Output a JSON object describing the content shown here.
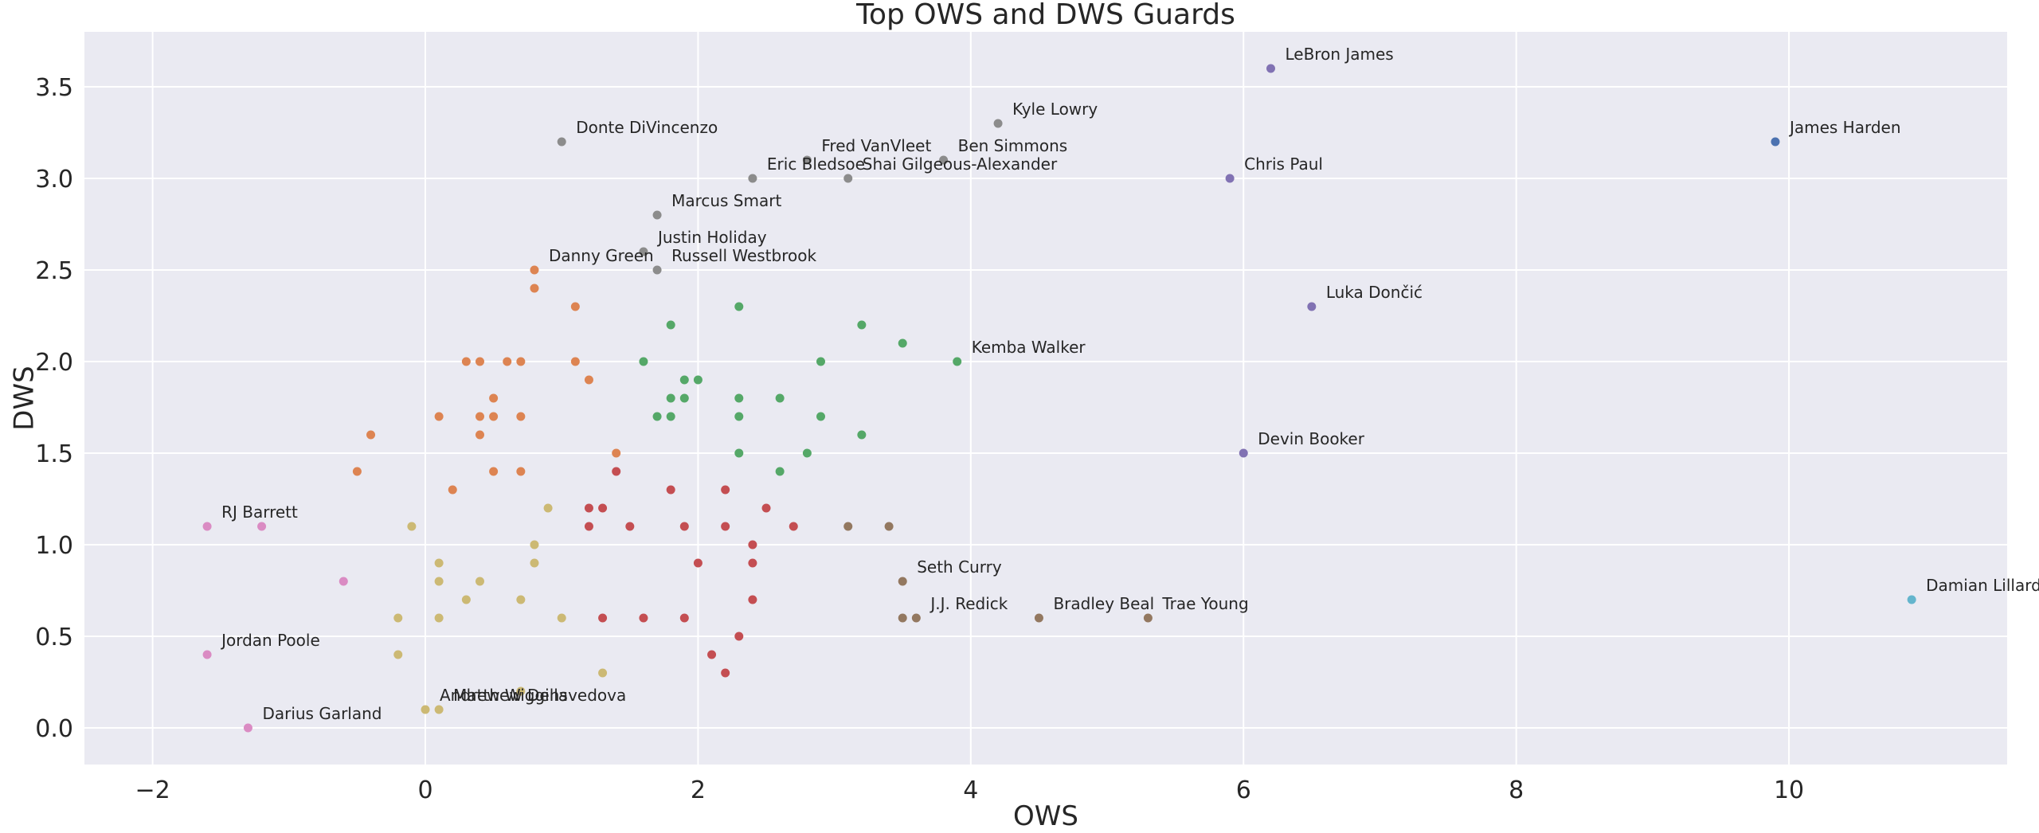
{
  "chart_data": {
    "type": "scatter",
    "title": "Top OWS and DWS Guards",
    "xlabel": "OWS",
    "ylabel": "DWS",
    "xlim": [
      -2.5,
      11.6
    ],
    "ylim": [
      -0.2,
      3.8
    ],
    "xticks": [
      -2,
      0,
      2,
      4,
      6,
      8,
      10
    ],
    "yticks": [
      0.0,
      0.5,
      1.0,
      1.5,
      2.0,
      2.5,
      3.0,
      3.5
    ],
    "xtick_labels": [
      "−2",
      "0",
      "2",
      "4",
      "6",
      "8",
      "10"
    ],
    "ytick_labels": [
      "0.0",
      "0.5",
      "1.0",
      "1.5",
      "2.0",
      "2.5",
      "3.0",
      "3.5"
    ],
    "grid": true,
    "background": "#eaeaf2",
    "series": [
      {
        "color": "#4c72b0",
        "points": [
          {
            "x": 9.9,
            "y": 3.2,
            "label": "James Harden"
          }
        ]
      },
      {
        "color": "#dd8452",
        "points": [
          {
            "x": 0.8,
            "y": 2.5,
            "label": "Danny Green"
          },
          {
            "x": 0.8,
            "y": 2.4
          },
          {
            "x": 1.1,
            "y": 2.3
          },
          {
            "x": 0.3,
            "y": 2.0
          },
          {
            "x": 0.4,
            "y": 2.0
          },
          {
            "x": 0.6,
            "y": 2.0
          },
          {
            "x": 0.7,
            "y": 2.0
          },
          {
            "x": 1.1,
            "y": 2.0
          },
          {
            "x": 1.2,
            "y": 1.9
          },
          {
            "x": 0.5,
            "y": 1.8
          },
          {
            "x": 0.1,
            "y": 1.7
          },
          {
            "x": 0.4,
            "y": 1.7
          },
          {
            "x": 0.5,
            "y": 1.7
          },
          {
            "x": 0.7,
            "y": 1.7
          },
          {
            "x": -0.4,
            "y": 1.6
          },
          {
            "x": 0.4,
            "y": 1.6
          },
          {
            "x": 1.4,
            "y": 1.5
          },
          {
            "x": -0.5,
            "y": 1.4
          },
          {
            "x": 0.5,
            "y": 1.4
          },
          {
            "x": 0.7,
            "y": 1.4
          },
          {
            "x": 0.2,
            "y": 1.3
          }
        ]
      },
      {
        "color": "#55a868",
        "points": [
          {
            "x": 3.9,
            "y": 2.0,
            "label": "Kemba Walker"
          },
          {
            "x": 2.3,
            "y": 2.3
          },
          {
            "x": 1.8,
            "y": 2.2
          },
          {
            "x": 3.2,
            "y": 2.2
          },
          {
            "x": 3.5,
            "y": 2.1
          },
          {
            "x": 1.6,
            "y": 2.0
          },
          {
            "x": 2.9,
            "y": 2.0
          },
          {
            "x": 1.9,
            "y": 1.9
          },
          {
            "x": 2.0,
            "y": 1.9
          },
          {
            "x": 1.8,
            "y": 1.8
          },
          {
            "x": 1.9,
            "y": 1.8
          },
          {
            "x": 2.3,
            "y": 1.8
          },
          {
            "x": 2.6,
            "y": 1.8
          },
          {
            "x": 1.7,
            "y": 1.7
          },
          {
            "x": 1.8,
            "y": 1.7
          },
          {
            "x": 2.3,
            "y": 1.7
          },
          {
            "x": 2.9,
            "y": 1.7
          },
          {
            "x": 3.2,
            "y": 1.6
          },
          {
            "x": 2.3,
            "y": 1.5
          },
          {
            "x": 2.8,
            "y": 1.5
          },
          {
            "x": 2.6,
            "y": 1.4
          }
        ]
      },
      {
        "color": "#c44e52",
        "points": [
          {
            "x": 1.4,
            "y": 1.4
          },
          {
            "x": 1.8,
            "y": 1.3
          },
          {
            "x": 2.2,
            "y": 1.3
          },
          {
            "x": 1.2,
            "y": 1.2
          },
          {
            "x": 1.3,
            "y": 1.2
          },
          {
            "x": 2.5,
            "y": 1.2
          },
          {
            "x": 1.2,
            "y": 1.1
          },
          {
            "x": 1.5,
            "y": 1.1
          },
          {
            "x": 1.9,
            "y": 1.1
          },
          {
            "x": 2.2,
            "y": 1.1
          },
          {
            "x": 2.7,
            "y": 1.1
          },
          {
            "x": 2.4,
            "y": 1.0
          },
          {
            "x": 2.0,
            "y": 0.9
          },
          {
            "x": 2.4,
            "y": 0.9
          },
          {
            "x": 2.4,
            "y": 0.7
          },
          {
            "x": 1.3,
            "y": 0.6
          },
          {
            "x": 1.6,
            "y": 0.6
          },
          {
            "x": 1.9,
            "y": 0.6
          },
          {
            "x": 2.3,
            "y": 0.5
          },
          {
            "x": 2.1,
            "y": 0.4
          },
          {
            "x": 2.2,
            "y": 0.3
          }
        ]
      },
      {
        "color": "#8172b3",
        "points": [
          {
            "x": 6.2,
            "y": 3.6,
            "label": "LeBron James"
          },
          {
            "x": 5.9,
            "y": 3.0,
            "label": "Chris Paul"
          },
          {
            "x": 6.5,
            "y": 2.3,
            "label": "Luka Dončić"
          },
          {
            "x": 6.0,
            "y": 1.5,
            "label": "Devin Booker"
          }
        ]
      },
      {
        "color": "#937860",
        "points": [
          {
            "x": 3.5,
            "y": 0.8,
            "label": "Seth Curry"
          },
          {
            "x": 3.6,
            "y": 0.6,
            "label": "J.J. Redick"
          },
          {
            "x": 4.5,
            "y": 0.6,
            "label": "Bradley Beal"
          },
          {
            "x": 5.3,
            "y": 0.6,
            "label": "Trae Young"
          },
          {
            "x": 3.1,
            "y": 1.1
          },
          {
            "x": 3.4,
            "y": 1.1
          },
          {
            "x": 3.5,
            "y": 0.6
          }
        ]
      },
      {
        "color": "#da8bc3",
        "points": [
          {
            "x": -1.6,
            "y": 1.1,
            "label": "RJ Barrett"
          },
          {
            "x": -1.6,
            "y": 0.4,
            "label": "Jordan Poole"
          },
          {
            "x": -1.3,
            "y": 0.0,
            "label": "Darius Garland"
          },
          {
            "x": -1.2,
            "y": 1.1
          },
          {
            "x": -0.6,
            "y": 0.8
          }
        ]
      },
      {
        "color": "#8c8c8c",
        "points": [
          {
            "x": 4.2,
            "y": 3.3,
            "label": "Kyle Lowry"
          },
          {
            "x": 1.0,
            "y": 3.2,
            "label": "Donte DiVincenzo"
          },
          {
            "x": 2.8,
            "y": 3.1,
            "label": "Fred VanVleet"
          },
          {
            "x": 3.8,
            "y": 3.1,
            "label": "Ben Simmons"
          },
          {
            "x": 2.4,
            "y": 3.0,
            "label": "Eric Bledsoe"
          },
          {
            "x": 3.1,
            "y": 3.0,
            "label": "Shai Gilgeous-Alexander"
          },
          {
            "x": 1.7,
            "y": 2.8,
            "label": "Marcus Smart"
          },
          {
            "x": 1.6,
            "y": 2.6,
            "label": "Justin Holiday"
          },
          {
            "x": 1.7,
            "y": 2.5,
            "label": "Russell Westbrook"
          }
        ]
      },
      {
        "color": "#ccb974",
        "points": [
          {
            "x": 0.0,
            "y": 0.1,
            "label": "Andrew Wiggins"
          },
          {
            "x": 0.1,
            "y": 0.1,
            "label": "Matthew Dellavedova"
          },
          {
            "x": 0.9,
            "y": 1.2
          },
          {
            "x": -0.1,
            "y": 1.1
          },
          {
            "x": 0.8,
            "y": 1.0
          },
          {
            "x": 0.1,
            "y": 0.9
          },
          {
            "x": 0.8,
            "y": 0.9
          },
          {
            "x": 0.1,
            "y": 0.8
          },
          {
            "x": 0.4,
            "y": 0.8
          },
          {
            "x": 0.3,
            "y": 0.7
          },
          {
            "x": 0.7,
            "y": 0.7
          },
          {
            "x": -0.2,
            "y": 0.6
          },
          {
            "x": 0.1,
            "y": 0.6
          },
          {
            "x": 1.0,
            "y": 0.6
          },
          {
            "x": -0.2,
            "y": 0.4
          },
          {
            "x": 1.3,
            "y": 0.3
          },
          {
            "x": 0.7,
            "y": 0.2
          }
        ]
      },
      {
        "color": "#64b5cd",
        "points": [
          {
            "x": 10.9,
            "y": 0.7,
            "label": "Damian Lillard"
          }
        ]
      }
    ]
  }
}
